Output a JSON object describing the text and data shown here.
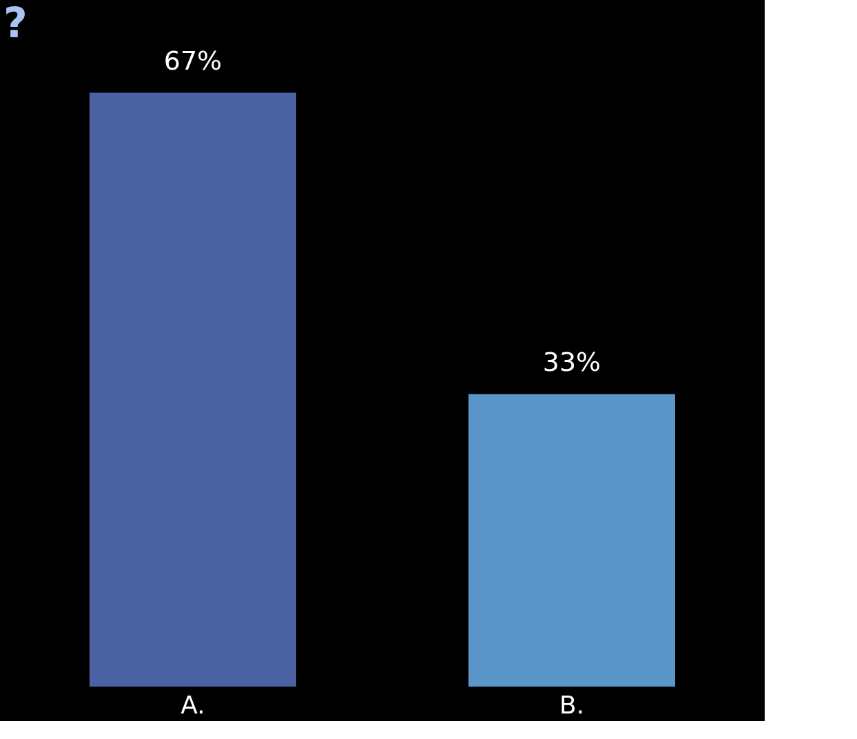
{
  "chart_data": {
    "type": "bar",
    "title": "?",
    "categories": [
      "A.",
      "B."
    ],
    "values": [
      67,
      33
    ],
    "colors": [
      "#4a62a2",
      "#5b96c9"
    ],
    "value_labels": [
      "67%",
      "33%"
    ],
    "tick_labels": "x"
  }
}
